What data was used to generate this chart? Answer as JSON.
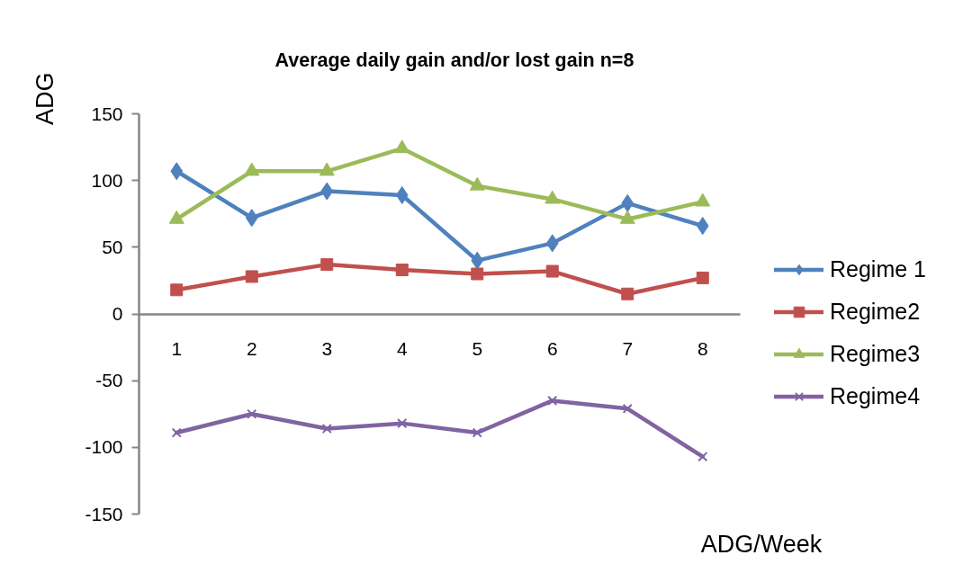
{
  "chart_data": {
    "type": "line",
    "title": "Average daily gain and/or lost gain n=8",
    "xlabel": "ADG/Week",
    "ylabel": "ADG",
    "categories": [
      "1",
      "2",
      "3",
      "4",
      "5",
      "6",
      "7",
      "8"
    ],
    "ylim": [
      -150,
      150
    ],
    "yticks": [
      -150,
      -100,
      -50,
      0,
      50,
      100,
      150
    ],
    "grid": false,
    "legend": "right",
    "line_style": "solid",
    "series": [
      {
        "name": "Regime 1",
        "color": "#4f81bd",
        "marker": "diamond",
        "values": [
          107,
          72,
          92,
          89,
          40,
          53,
          83,
          66
        ]
      },
      {
        "name": "Regime2",
        "color": "#c0504d",
        "marker": "square",
        "values": [
          18,
          28,
          37,
          33,
          30,
          32,
          15,
          27
        ]
      },
      {
        "name": "Regime3",
        "color": "#9bbb59",
        "marker": "triangle",
        "values": [
          71,
          107,
          107,
          124,
          96,
          86,
          71,
          84
        ]
      },
      {
        "name": "Regime4",
        "color": "#8064a2",
        "marker": "cross",
        "values": [
          -89,
          -75,
          -86,
          -82,
          -89,
          -65,
          -71,
          -107
        ]
      }
    ]
  }
}
